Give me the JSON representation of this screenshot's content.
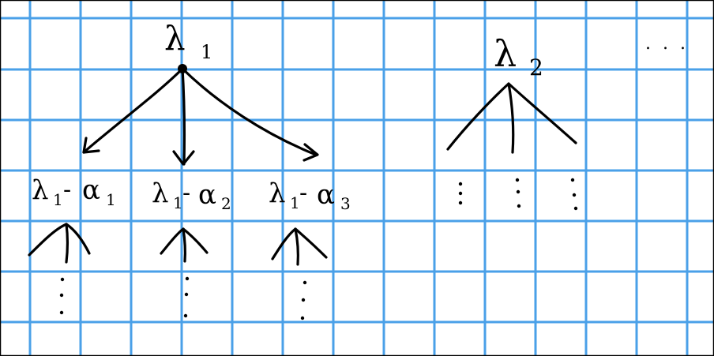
{
  "colors": {
    "background": "#ffffff",
    "grid": "#4aa0e8",
    "ink": "#000000",
    "frame": "#000000"
  },
  "nodes": {
    "root1": {
      "base": "λ",
      "sub": "1"
    },
    "root2": {
      "base": "λ",
      "sub": "2"
    },
    "child1": {
      "base": "λ",
      "sub1": "1",
      "sep": "-",
      "alpha": "α",
      "sub2": "1"
    },
    "child2": {
      "base": "λ",
      "sub1": "1",
      "sep": "-",
      "alpha": "α",
      "sub2": "2"
    },
    "child3": {
      "base": "λ",
      "sub1": "1",
      "sep": "-",
      "alpha": "α",
      "sub2": "3"
    }
  },
  "ellipsis": {
    "horizontal": ". . ."
  }
}
